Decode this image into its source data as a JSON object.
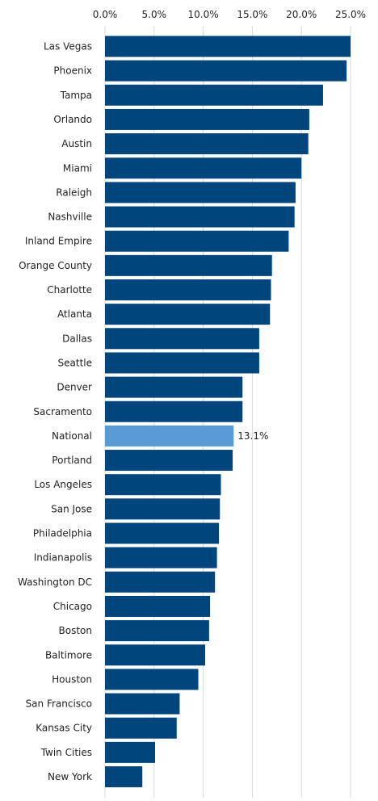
{
  "chart_data": {
    "type": "bar",
    "orientation": "horizontal",
    "categories": [
      "Las Vegas",
      "Phoenix",
      "Tampa",
      "Orlando",
      "Austin",
      "Miami",
      "Raleigh",
      "Nashville",
      "Inland Empire",
      "Orange County",
      "Charlotte",
      "Atlanta",
      "Dallas",
      "Seattle",
      "Denver",
      "Sacramento",
      "National",
      "Portland",
      "Los Angeles",
      "San Jose",
      "Philadelphia",
      "Indianapolis",
      "Washington DC",
      "Chicago",
      "Boston",
      "Baltimore",
      "Houston",
      "San Francisco",
      "Kansas City",
      "Twin Cities",
      "New York"
    ],
    "values": [
      25.0,
      24.6,
      22.2,
      20.8,
      20.7,
      20.0,
      19.4,
      19.3,
      18.7,
      17.0,
      16.9,
      16.8,
      15.7,
      15.7,
      14.0,
      14.0,
      13.1,
      13.0,
      11.8,
      11.7,
      11.6,
      11.4,
      11.2,
      10.7,
      10.6,
      10.2,
      9.5,
      7.6,
      7.3,
      5.1,
      3.8
    ],
    "highlight_category": "National",
    "data_labels": [
      {
        "category": "National",
        "text": "13.1%"
      }
    ],
    "x_ticks": [
      "0.0%",
      "5.0%",
      "10.0%",
      "15.0%",
      "20.0%",
      "25.0%"
    ],
    "x_tick_values": [
      0,
      5,
      10,
      15,
      20,
      25
    ],
    "xlim": [
      0,
      25
    ],
    "title": "",
    "xlabel": "",
    "ylabel": "",
    "axis_position": "top",
    "grid": true,
    "colors": {
      "bar": "#00457c",
      "highlight": "#5b9bd5",
      "grid": "#d9d9d9",
      "text": "#222222"
    }
  }
}
